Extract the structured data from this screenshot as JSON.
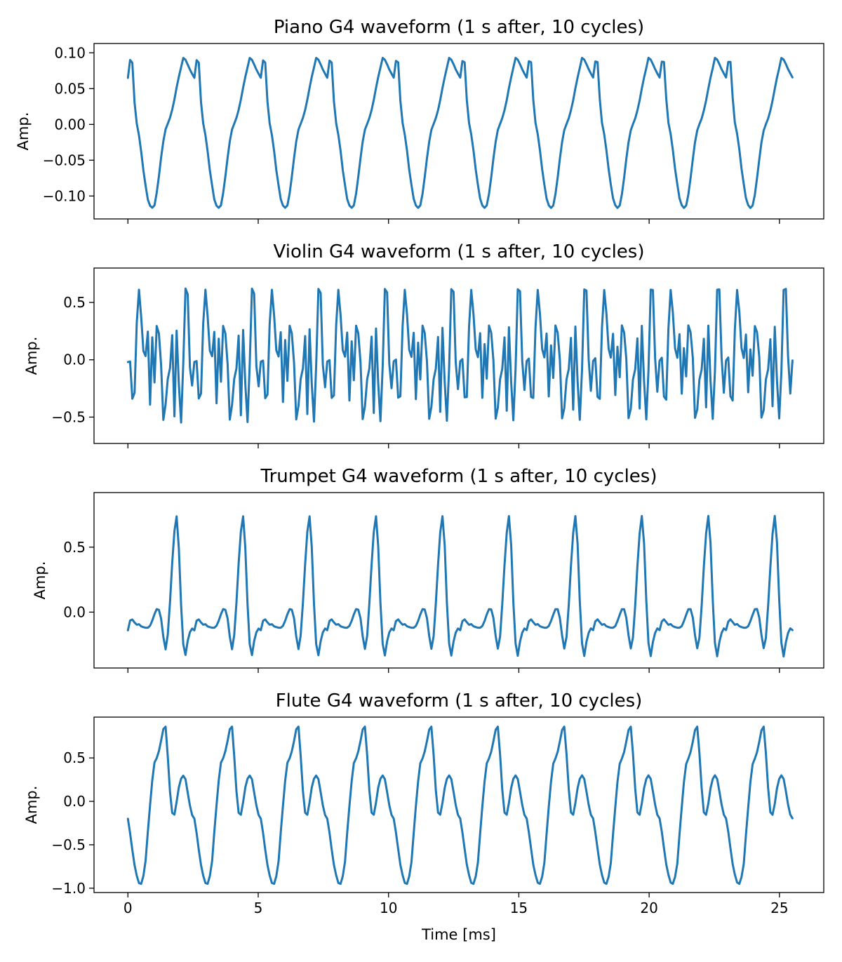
{
  "colors": {
    "line": "#1f77b4",
    "axes": "#000000",
    "background": "#ffffff"
  },
  "chart_data": [
    {
      "type": "line",
      "title": "Piano G4 waveform (1 s after, 10 cycles)",
      "xlabel": "",
      "ylabel": "Amp.",
      "xlim": [
        -1.3,
        26.7
      ],
      "ylim": [
        -0.132,
        0.113
      ],
      "xticks": [
        0,
        5,
        10,
        15,
        20,
        25
      ],
      "xtick_labels": [
        "",
        "",
        "",
        "",
        "",
        ""
      ],
      "yticks": [
        0.1,
        0.05,
        0.0,
        -0.05,
        -0.1
      ],
      "ytick_labels": [
        "0.10",
        "0.05",
        "0.00",
        "−0.05",
        "−0.10"
      ],
      "grid": false,
      "x_start": 0.0,
      "x_end": 25.5,
      "period": 2.551,
      "cycle_shape": [
        [
          0.0,
          0.065
        ],
        [
          0.04,
          0.095
        ],
        [
          0.07,
          0.085
        ],
        [
          0.09,
          0.05
        ],
        [
          0.11,
          0.01
        ],
        [
          0.15,
          -0.005
        ],
        [
          0.19,
          -0.03
        ],
        [
          0.24,
          -0.07
        ],
        [
          0.3,
          -0.105
        ],
        [
          0.35,
          -0.118
        ],
        [
          0.41,
          -0.112
        ],
        [
          0.47,
          -0.07
        ],
        [
          0.52,
          -0.03
        ],
        [
          0.57,
          -0.005
        ],
        [
          0.62,
          0.005
        ],
        [
          0.68,
          0.025
        ],
        [
          0.75,
          0.06
        ],
        [
          0.8,
          0.08
        ],
        [
          0.83,
          0.093
        ],
        [
          0.87,
          0.09
        ],
        [
          0.94,
          0.075
        ],
        [
          1.0,
          0.065
        ]
      ]
    },
    {
      "type": "line",
      "title": "Violin G4 waveform (1 s after, 10 cycles)",
      "xlabel": "",
      "ylabel": "Amp.",
      "xlim": [
        -1.3,
        26.7
      ],
      "ylim": [
        -0.73,
        0.8
      ],
      "xticks": [
        0,
        5,
        10,
        15,
        20,
        25
      ],
      "xtick_labels": [
        "",
        "",
        "",
        "",
        "",
        ""
      ],
      "yticks": [
        0.5,
        0.0,
        -0.5
      ],
      "ytick_labels": [
        "0.5",
        "0.0",
        "−0.5"
      ],
      "grid": false,
      "x_start": 0.0,
      "x_end": 25.5,
      "period": 2.551,
      "cycle_shape": [
        [
          0.0,
          -0.02
        ],
        [
          0.03,
          0.02
        ],
        [
          0.06,
          -0.3
        ],
        [
          0.09,
          -0.48
        ],
        [
          0.12,
          0.1
        ],
        [
          0.15,
          0.6
        ],
        [
          0.18,
          0.62
        ],
        [
          0.21,
          0.25
        ],
        [
          0.25,
          -0.05
        ],
        [
          0.28,
          0.1
        ],
        [
          0.31,
          0.32
        ],
        [
          0.34,
          -0.6
        ],
        [
          0.37,
          0.3
        ],
        [
          0.4,
          -0.2
        ],
        [
          0.43,
          0.3
        ],
        [
          0.46,
          0.25
        ],
        [
          0.49,
          0.15
        ],
        [
          0.52,
          -0.45
        ],
        [
          0.55,
          -0.62
        ],
        [
          0.58,
          -0.2
        ],
        [
          0.61,
          -0.15
        ],
        [
          0.64,
          -0.05
        ],
        [
          0.67,
          0.25
        ],
        [
          0.7,
          -0.5
        ],
        [
          0.73,
          0.3
        ],
        [
          0.76,
          -0.15
        ],
        [
          0.8,
          -0.55
        ],
        [
          0.83,
          -0.1
        ],
        [
          0.86,
          0.6
        ],
        [
          0.89,
          0.7
        ],
        [
          0.92,
          0.3
        ],
        [
          0.95,
          -0.55
        ],
        [
          0.98,
          0.05
        ],
        [
          1.0,
          -0.02
        ]
      ]
    },
    {
      "type": "line",
      "title": "Trumpet G4 waveform (1 s after, 10 cycles)",
      "xlabel": "",
      "ylabel": "Amp.",
      "xlim": [
        -1.3,
        26.7
      ],
      "ylim": [
        -0.43,
        0.92
      ],
      "xticks": [
        0,
        5,
        10,
        15,
        20,
        25
      ],
      "xtick_labels": [
        "",
        "",
        "",
        "",
        "",
        ""
      ],
      "yticks": [
        0.5,
        0.0
      ],
      "ytick_labels": [
        "0.5",
        "0.0"
      ],
      "grid": false,
      "x_start": 0.0,
      "x_end": 25.5,
      "period": 2.551,
      "cycle_shape": [
        [
          0.0,
          -0.14
        ],
        [
          0.04,
          -0.05
        ],
        [
          0.08,
          -0.06
        ],
        [
          0.12,
          -0.1
        ],
        [
          0.16,
          -0.09
        ],
        [
          0.2,
          -0.11
        ],
        [
          0.26,
          -0.12
        ],
        [
          0.32,
          -0.12
        ],
        [
          0.38,
          -0.05
        ],
        [
          0.42,
          0.02
        ],
        [
          0.46,
          0.03
        ],
        [
          0.5,
          -0.05
        ],
        [
          0.54,
          -0.22
        ],
        [
          0.58,
          -0.32
        ],
        [
          0.63,
          0.05
        ],
        [
          0.68,
          0.5
        ],
        [
          0.72,
          0.75
        ],
        [
          0.75,
          0.72
        ],
        [
          0.78,
          0.3
        ],
        [
          0.82,
          -0.2
        ],
        [
          0.86,
          -0.35
        ],
        [
          0.9,
          -0.22
        ],
        [
          0.95,
          -0.12
        ],
        [
          1.0,
          -0.14
        ]
      ]
    },
    {
      "type": "line",
      "title": "Flute G4 waveform (1 s after, 10 cycles)",
      "xlabel": "Time [ms]",
      "ylabel": "Amp.",
      "xlim": [
        -1.3,
        26.7
      ],
      "ylim": [
        -1.05,
        0.97
      ],
      "xticks": [
        0,
        5,
        10,
        15,
        20,
        25
      ],
      "xtick_labels": [
        "0",
        "5",
        "10",
        "15",
        "20",
        "25"
      ],
      "yticks": [
        0.5,
        0.0,
        -0.5,
        -1.0
      ],
      "ytick_labels": [
        "0.5",
        "0.0",
        "−0.5",
        "−1.0"
      ],
      "grid": false,
      "x_start": 0.0,
      "x_end": 25.5,
      "period": 2.551,
      "cycle_shape": [
        [
          0.0,
          -0.2
        ],
        [
          0.04,
          -0.4
        ],
        [
          0.09,
          -0.7
        ],
        [
          0.14,
          -0.88
        ],
        [
          0.17,
          -0.95
        ],
        [
          0.21,
          -0.95
        ],
        [
          0.26,
          -0.75
        ],
        [
          0.31,
          -0.25
        ],
        [
          0.36,
          0.2
        ],
        [
          0.4,
          0.45
        ],
        [
          0.45,
          0.52
        ],
        [
          0.5,
          0.7
        ],
        [
          0.54,
          0.86
        ],
        [
          0.57,
          0.86
        ],
        [
          0.61,
          0.4
        ],
        [
          0.65,
          -0.1
        ],
        [
          0.68,
          -0.16
        ],
        [
          0.71,
          -0.15
        ],
        [
          0.75,
          0.1
        ],
        [
          0.79,
          0.25
        ],
        [
          0.83,
          0.3
        ],
        [
          0.87,
          0.25
        ],
        [
          0.92,
          0.0
        ],
        [
          0.96,
          -0.15
        ],
        [
          1.0,
          -0.2
        ]
      ]
    }
  ]
}
